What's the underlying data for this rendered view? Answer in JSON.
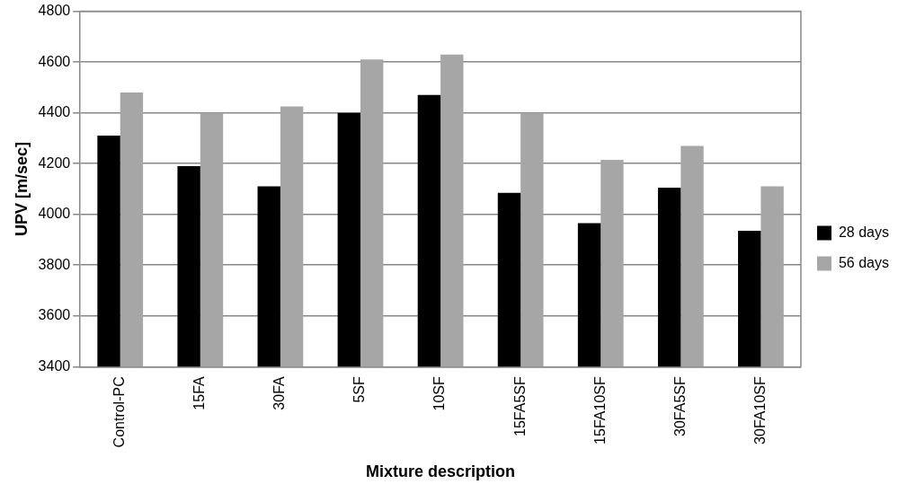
{
  "chart_data": {
    "type": "bar",
    "xlabel": "Mixture description",
    "ylabel": "UPV [m/sec]",
    "categories": [
      "Control-PC",
      "15FA",
      "30FA",
      "5SF",
      "10SF",
      "15FA5SF",
      "15FA10SF",
      "30FA5SF",
      "30FA10SF"
    ],
    "series": [
      {
        "name": "28 days",
        "color": "#000000",
        "values": [
          4310,
          4190,
          4110,
          4400,
          4470,
          4085,
          3965,
          4105,
          3935
        ]
      },
      {
        "name": "56 days",
        "color": "#a6a6a6",
        "values": [
          4480,
          4400,
          4425,
          4610,
          4630,
          4400,
          4215,
          4270,
          4110
        ]
      }
    ],
    "ylim": [
      3400,
      4800
    ],
    "yticks": [
      3400,
      3600,
      3800,
      4000,
      4200,
      4400,
      4600,
      4800
    ],
    "grid": "y",
    "legend": "right"
  }
}
